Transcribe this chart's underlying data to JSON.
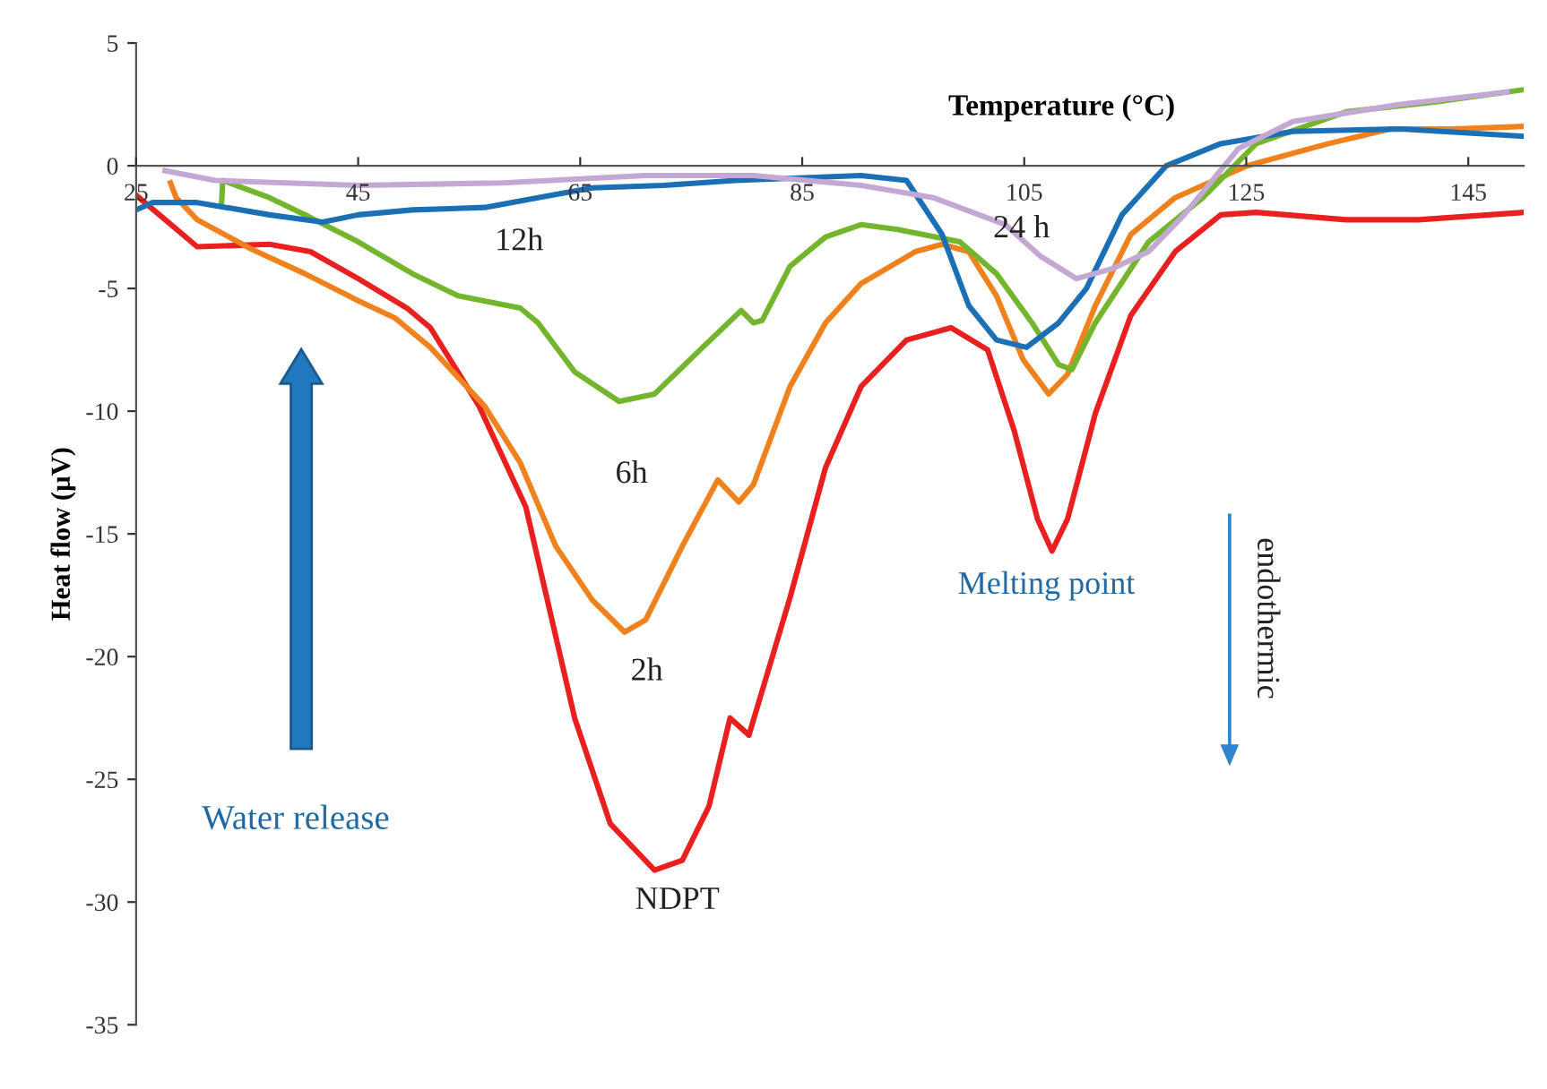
{
  "chart_data": {
    "type": "line",
    "xlabel": "Temperature (°C)",
    "ylabel": "Heat flow (µV)",
    "xlim": [
      25,
      150
    ],
    "ylim": [
      -35,
      5
    ],
    "xticks": [
      25,
      45,
      65,
      85,
      105,
      125,
      145
    ],
    "yticks": [
      -35,
      -30,
      -25,
      -20,
      -15,
      -10,
      -5,
      0,
      5
    ],
    "grid": false,
    "legend": false,
    "marker": "none",
    "line_style": "solid",
    "series": [
      {
        "color": "#e8201f",
        "x": [
          25,
          30.5,
          37,
          40.7,
          45,
          49.4,
          51.5,
          55.9,
          60.1,
          64.5,
          67.7,
          71.7,
          74.2,
          76.6,
          78.5,
          80.2,
          83.9,
          87.1,
          90.3,
          94.4,
          98.4,
          101.7,
          104.1,
          106.2,
          107.5,
          108.9,
          111.4,
          114.6,
          118.6,
          122.7,
          125.9,
          134,
          140.5,
          150
        ],
        "values": [
          -1.2,
          -3.3,
          -3.2,
          -3.5,
          -4.6,
          -5.8,
          -6.6,
          -9.8,
          -13.9,
          -22.5,
          -26.8,
          -28.7,
          -28.3,
          -26.1,
          -22.5,
          -23.2,
          -17.6,
          -12.3,
          -9.0,
          -7.1,
          -6.6,
          -7.5,
          -10.8,
          -14.4,
          -15.7,
          -14.4,
          -10.1,
          -6.1,
          -3.5,
          -2.0,
          -1.9,
          -2.2,
          -2.2,
          -1.9
        ]
      },
      {
        "color": "#f0821e",
        "x": [
          28.1,
          28.6,
          30.5,
          35.4,
          40.2,
          45,
          48.3,
          51.5,
          56.4,
          59.6,
          62.8,
          66.1,
          69,
          70.9,
          74.2,
          77.4,
          79.3,
          80.6,
          83.9,
          87.1,
          90.3,
          95.2,
          97.6,
          100,
          102.5,
          104.9,
          107.2,
          108.9,
          111.4,
          114.6,
          118.6,
          125.1,
          132.4,
          138,
          143.7,
          150
        ],
        "values": [
          -0.7,
          -1.3,
          -2.2,
          -3.4,
          -4.4,
          -5.5,
          -6.2,
          -7.4,
          -9.8,
          -12.1,
          -15.5,
          -17.7,
          -19.0,
          -18.5,
          -15.5,
          -12.8,
          -13.7,
          -13.0,
          -9.0,
          -6.4,
          -4.8,
          -3.5,
          -3.2,
          -3.5,
          -5.3,
          -7.9,
          -9.3,
          -8.5,
          -5.7,
          -2.8,
          -1.3,
          0,
          0.9,
          1.5,
          1.5,
          1.6
        ]
      },
      {
        "color": "#74b52e",
        "x": [
          32.7,
          32.8,
          37,
          40.2,
          45,
          49.9,
          54,
          59.6,
          61.2,
          64.5,
          68.5,
          71.7,
          75.8,
          79.5,
          80.6,
          81.4,
          83.9,
          87.1,
          90.3,
          93.6,
          99.2,
          102.5,
          105.7,
          108.1,
          109.3,
          111.4,
          116.2,
          121.1,
          125.9,
          134,
          142.1,
          150
        ],
        "values": [
          -1.5,
          -0.6,
          -1.3,
          -2.0,
          -3.1,
          -4.4,
          -5.3,
          -5.8,
          -6.4,
          -8.4,
          -9.6,
          -9.3,
          -7.5,
          -5.9,
          -6.4,
          -6.3,
          -4.1,
          -2.9,
          -2.4,
          -2.6,
          -3.1,
          -4.4,
          -6.4,
          -8.1,
          -8.3,
          -6.4,
          -3.1,
          -1.3,
          0.9,
          2.2,
          2.6,
          3.1
        ]
      },
      {
        "color": "#1a6fb5",
        "x": [
          25,
          26.5,
          30.5,
          37,
          41.8,
          45,
          49.9,
          56.4,
          61.2,
          66.1,
          72.5,
          79,
          90.3,
          94.4,
          97.6,
          100,
          102.5,
          105.2,
          108.1,
          110.6,
          113.8,
          117.8,
          122.7,
          129.2,
          138.9,
          150
        ],
        "values": [
          -1.8,
          -1.5,
          -1.5,
          -2.0,
          -2.3,
          -2.0,
          -1.8,
          -1.7,
          -1.3,
          -0.9,
          -0.8,
          -0.6,
          -0.4,
          -0.6,
          -2.8,
          -5.7,
          -7.1,
          -7.4,
          -6.4,
          -5.0,
          -2.0,
          0,
          0.9,
          1.4,
          1.5,
          1.2
        ]
      },
      {
        "color": "#c3a8d4",
        "x": [
          27.6,
          32.1,
          45,
          58,
          70.9,
          80.6,
          90.3,
          96.8,
          103.3,
          106.5,
          109.7,
          112.9,
          116.2,
          119.4,
          124.3,
          129.2,
          138.9,
          148.5
        ],
        "values": [
          -0.2,
          -0.6,
          -0.8,
          -0.7,
          -0.4,
          -0.4,
          -0.8,
          -1.3,
          -2.4,
          -3.7,
          -4.6,
          -4.2,
          -3.5,
          -2.0,
          0.7,
          1.8,
          2.5,
          3.0
        ]
      }
    ],
    "annotations": [
      "NDPT",
      "2h",
      "6h",
      "12h",
      "24 h",
      "Water release",
      "Melting point",
      "endothermic"
    ]
  }
}
